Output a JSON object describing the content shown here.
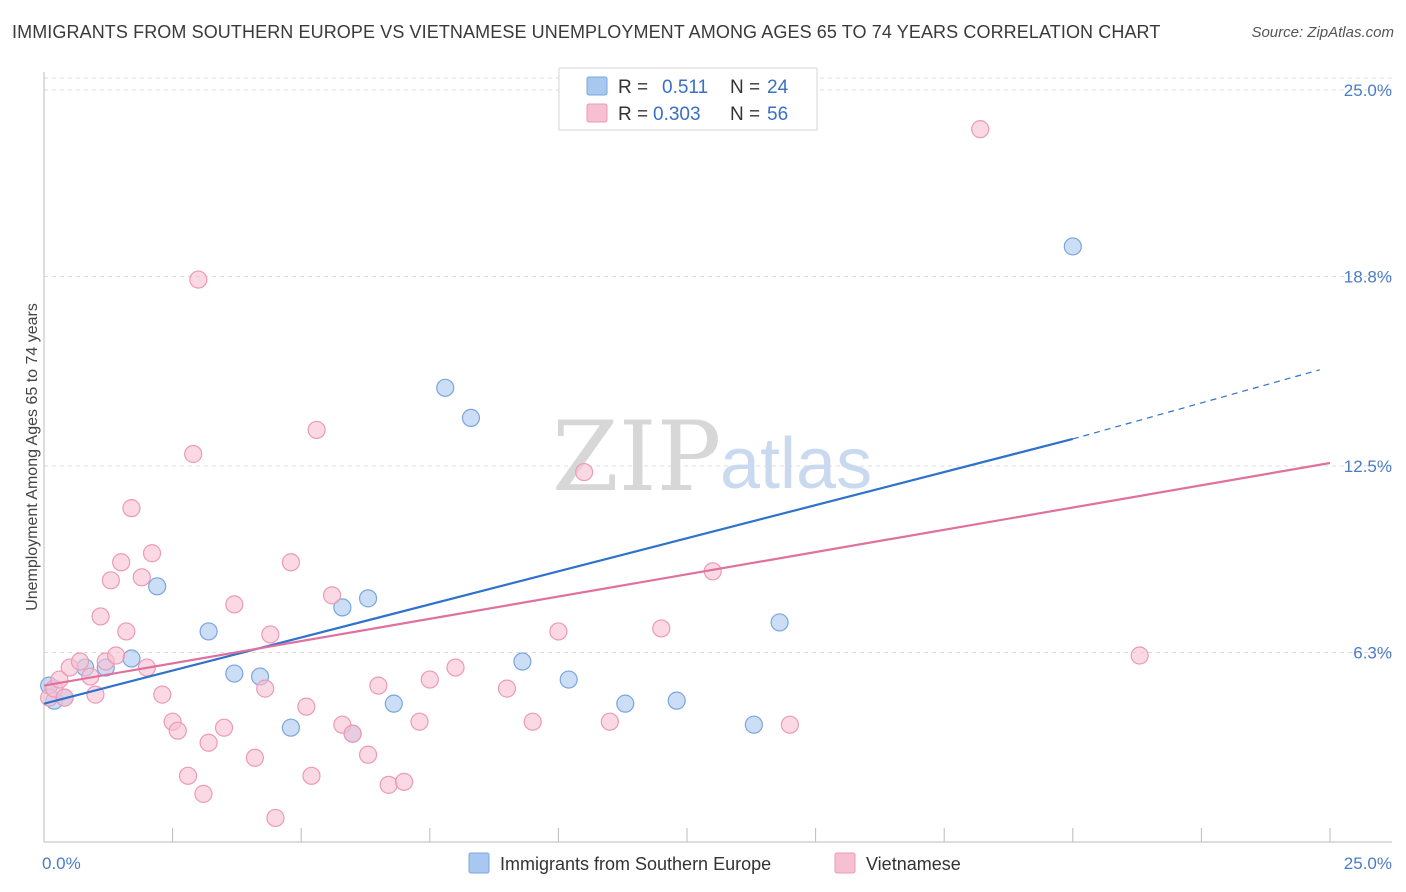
{
  "chart_data": {
    "type": "scatter",
    "title": "IMMIGRANTS FROM SOUTHERN EUROPE VS VIETNAMESE UNEMPLOYMENT AMONG AGES 65 TO 74 YEARS CORRELATION CHART",
    "source": "Source: ZipAtlas.com",
    "ylabel": "Unemployment Among Ages 65 to 74 years",
    "xlabel": "",
    "xlim": [
      0,
      25
    ],
    "ylim": [
      0,
      25.6
    ],
    "x_tick_labels": [
      "0.0%",
      "25.0%"
    ],
    "y_ticks": [
      6.3,
      12.5,
      18.8,
      25.0
    ],
    "y_tick_labels": [
      "6.3%",
      "12.5%",
      "18.8%",
      "25.0%"
    ],
    "watermark": {
      "zip": "ZIP",
      "atlas": "atlas"
    },
    "legend": [
      {
        "r_label": "R =",
        "r_value": "0.511",
        "n_label": "N =",
        "n_value": "24"
      },
      {
        "r_label": "R =",
        "r_value": "0.303",
        "n_label": "N =",
        "n_value": "56"
      }
    ],
    "series": [
      {
        "name": "Immigrants from Southern Europe",
        "color": "#a9c8f0",
        "stroke": "#7aa6dc",
        "line_color": "#2f72cc",
        "trend": {
          "x0": 0,
          "y0": 4.6,
          "x1": 20.0,
          "y1": 13.4,
          "dash_to_x": 24.8,
          "dash_to_y": 15.7
        },
        "points": [
          [
            0.1,
            5.2
          ],
          [
            0.2,
            4.7
          ],
          [
            0.4,
            4.8
          ],
          [
            0.8,
            5.8
          ],
          [
            1.2,
            5.8
          ],
          [
            1.7,
            6.1
          ],
          [
            2.2,
            8.5
          ],
          [
            3.2,
            7.0
          ],
          [
            3.7,
            5.6
          ],
          [
            4.2,
            5.5
          ],
          [
            4.8,
            3.8
          ],
          [
            5.8,
            7.8
          ],
          [
            6.0,
            3.6
          ],
          [
            6.3,
            8.1
          ],
          [
            6.8,
            4.6
          ],
          [
            7.8,
            15.1
          ],
          [
            8.3,
            14.1
          ],
          [
            9.3,
            6.0
          ],
          [
            10.2,
            5.4
          ],
          [
            11.3,
            4.6
          ],
          [
            12.3,
            4.7
          ],
          [
            13.8,
            3.9
          ],
          [
            14.3,
            7.3
          ],
          [
            20.0,
            19.8
          ]
        ]
      },
      {
        "name": "Vietnamese",
        "color": "#f7c0d2",
        "stroke": "#ec9ab5",
        "line_color": "#e0719e",
        "trend": {
          "x0": 0,
          "y0": 5.2,
          "x1": 25.0,
          "y1": 12.6
        },
        "points": [
          [
            0.1,
            4.8
          ],
          [
            0.2,
            5.1
          ],
          [
            0.3,
            5.4
          ],
          [
            0.4,
            4.8
          ],
          [
            0.5,
            5.8
          ],
          [
            0.7,
            6.0
          ],
          [
            0.9,
            5.5
          ],
          [
            1.0,
            4.9
          ],
          [
            1.1,
            7.5
          ],
          [
            1.2,
            6.0
          ],
          [
            1.3,
            8.7
          ],
          [
            1.4,
            6.2
          ],
          [
            1.5,
            9.3
          ],
          [
            1.6,
            7.0
          ],
          [
            1.7,
            11.1
          ],
          [
            1.9,
            8.8
          ],
          [
            2.0,
            5.8
          ],
          [
            2.1,
            9.6
          ],
          [
            2.3,
            4.9
          ],
          [
            2.5,
            4.0
          ],
          [
            2.6,
            3.7
          ],
          [
            2.8,
            2.2
          ],
          [
            2.9,
            12.9
          ],
          [
            3.0,
            18.7
          ],
          [
            3.1,
            1.6
          ],
          [
            3.2,
            3.3
          ],
          [
            3.5,
            3.8
          ],
          [
            3.7,
            7.9
          ],
          [
            4.1,
            2.8
          ],
          [
            4.3,
            5.1
          ],
          [
            4.4,
            6.9
          ],
          [
            4.5,
            0.8
          ],
          [
            4.8,
            9.3
          ],
          [
            5.1,
            4.5
          ],
          [
            5.2,
            2.2
          ],
          [
            5.3,
            13.7
          ],
          [
            5.6,
            8.2
          ],
          [
            5.8,
            3.9
          ],
          [
            6.0,
            3.6
          ],
          [
            6.3,
            2.9
          ],
          [
            6.5,
            5.2
          ],
          [
            6.7,
            1.9
          ],
          [
            7.0,
            2.0
          ],
          [
            7.3,
            4.0
          ],
          [
            7.5,
            5.4
          ],
          [
            8.0,
            5.8
          ],
          [
            9.0,
            5.1
          ],
          [
            9.5,
            4.0
          ],
          [
            10.0,
            7.0
          ],
          [
            10.5,
            12.3
          ],
          [
            11.0,
            4.0
          ],
          [
            12.0,
            7.1
          ],
          [
            13.0,
            9.0
          ],
          [
            14.5,
            3.9
          ],
          [
            18.2,
            23.7
          ],
          [
            21.3,
            6.2
          ]
        ]
      }
    ]
  }
}
